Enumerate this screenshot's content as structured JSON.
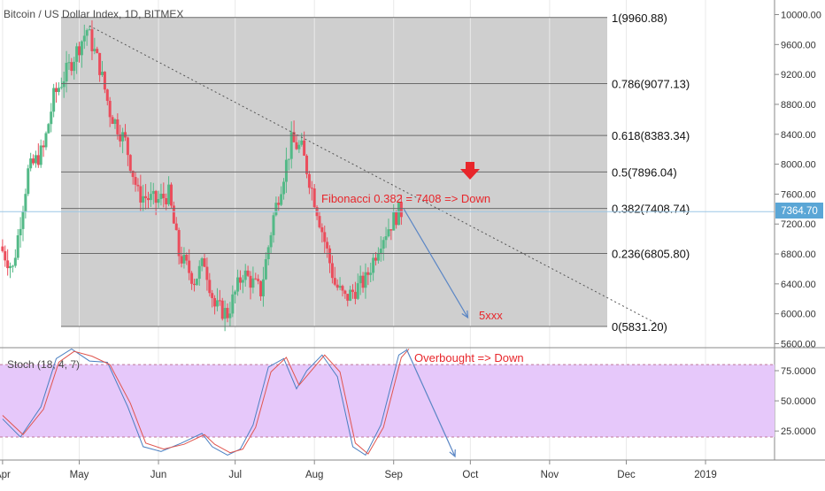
{
  "header": {
    "symbol_title": "Bitcoin / US Dollar Index, 1D, BITMEX"
  },
  "colors": {
    "up": "#53b987",
    "down": "#eb4d5c",
    "fib_zone": "#cfcfcf",
    "stoch_band": "#e6c8fa",
    "stoch_k": "#4a7fc1",
    "stoch_d": "#e0554e",
    "annotation_red": "#e8262b",
    "arrow_blue": "#5b86c5",
    "price_tag": "#5aa6d6"
  },
  "price_axis": {
    "ticks": [
      "10000.00",
      "9600.00",
      "9200.00",
      "8800.00",
      "8400.00",
      "8000.00",
      "7600.00",
      "7200.00",
      "6800.00",
      "6400.00",
      "6000.00",
      "5600.00"
    ]
  },
  "last_price_tag": "7364.70",
  "stoch_axis": {
    "ticks": [
      "75.0000",
      "50.0000",
      "25.0000"
    ]
  },
  "time_axis": {
    "labels": [
      "Apr",
      "May",
      "Jun",
      "Jul",
      "Aug",
      "Sep",
      "Oct",
      "Nov",
      "Dec",
      "2019"
    ]
  },
  "fib_levels": [
    {
      "label": "1(9960.88)",
      "price": 9960.88
    },
    {
      "label": "0.786(9077.13)",
      "price": 9077.13
    },
    {
      "label": "0.618(8383.34)",
      "price": 8383.34
    },
    {
      "label": "0.5(7896.04)",
      "price": 7896.04
    },
    {
      "label": "0.382(7408.74)",
      "price": 7408.74
    },
    {
      "label": "0.236(6805.80)",
      "price": 6805.8
    },
    {
      "label": "0(5831.20)",
      "price": 5831.2
    }
  ],
  "annotations": {
    "fib_note": "Fibonacci 0.382 = 7408 => Down",
    "target_note": "5xxx",
    "stoch_note": "Overbought => Down",
    "stoch_label": "Stoch (18, 4, 7)"
  },
  "chart_data": {
    "type": "candlestick",
    "title": "Bitcoin / US Dollar Index, 1D, BITMEX",
    "ylim": [
      5550,
      10050
    ],
    "x_range": [
      "2018-03-31",
      "2019-01-28"
    ],
    "key_prices": [
      {
        "date": "2018-04-01",
        "price": 6900
      },
      {
        "date": "2018-04-06",
        "price": 6600
      },
      {
        "date": "2018-04-12",
        "price": 7900
      },
      {
        "date": "2018-04-18",
        "price": 8200
      },
      {
        "date": "2018-04-22",
        "price": 8900
      },
      {
        "date": "2018-04-28",
        "price": 9300
      },
      {
        "date": "2018-05-05",
        "price": 9800
      },
      {
        "date": "2018-05-10",
        "price": 9300
      },
      {
        "date": "2018-05-14",
        "price": 8700
      },
      {
        "date": "2018-05-20",
        "price": 8300
      },
      {
        "date": "2018-05-25",
        "price": 7600
      },
      {
        "date": "2018-06-01",
        "price": 7500
      },
      {
        "date": "2018-06-06",
        "price": 7600
      },
      {
        "date": "2018-06-10",
        "price": 6800
      },
      {
        "date": "2018-06-16",
        "price": 6450
      },
      {
        "date": "2018-06-20",
        "price": 6700
      },
      {
        "date": "2018-06-24",
        "price": 6100
      },
      {
        "date": "2018-06-29",
        "price": 6000
      },
      {
        "date": "2018-07-05",
        "price": 6550
      },
      {
        "date": "2018-07-12",
        "price": 6300
      },
      {
        "date": "2018-07-17",
        "price": 7300
      },
      {
        "date": "2018-07-24",
        "price": 8300
      },
      {
        "date": "2018-07-28",
        "price": 8200
      },
      {
        "date": "2018-08-03",
        "price": 7400
      },
      {
        "date": "2018-08-10",
        "price": 6400
      },
      {
        "date": "2018-08-14",
        "price": 6200
      },
      {
        "date": "2018-08-22",
        "price": 6450
      },
      {
        "date": "2018-08-28",
        "price": 7000
      },
      {
        "date": "2018-09-04",
        "price": 7365
      }
    ],
    "projection_arrow": {
      "from": [
        "2018-09-05",
        7400
      ],
      "to": [
        "2018-09-30",
        5950
      ]
    },
    "trendline": {
      "from": [
        "2018-05-05",
        9850
      ],
      "to": [
        "2018-12-15",
        5830
      ]
    },
    "stoch": {
      "name": "Stoch (18, 4, 7)",
      "ylim": [
        0,
        100
      ],
      "upper_band": 80,
      "lower_band": 20,
      "k_points": [
        [
          "2018-04-01",
          35
        ],
        [
          "2018-04-08",
          20
        ],
        [
          "2018-04-16",
          45
        ],
        [
          "2018-04-22",
          85
        ],
        [
          "2018-04-28",
          93
        ],
        [
          "2018-05-05",
          83
        ],
        [
          "2018-05-12",
          82
        ],
        [
          "2018-05-20",
          45
        ],
        [
          "2018-05-26",
          12
        ],
        [
          "2018-06-02",
          8
        ],
        [
          "2018-06-10",
          15
        ],
        [
          "2018-06-18",
          23
        ],
        [
          "2018-06-22",
          12
        ],
        [
          "2018-06-28",
          5
        ],
        [
          "2018-07-03",
          10
        ],
        [
          "2018-07-08",
          30
        ],
        [
          "2018-07-14",
          78
        ],
        [
          "2018-07-20",
          85
        ],
        [
          "2018-07-25",
          60
        ],
        [
          "2018-07-29",
          75
        ],
        [
          "2018-08-04",
          88
        ],
        [
          "2018-08-10",
          70
        ],
        [
          "2018-08-16",
          12
        ],
        [
          "2018-08-21",
          5
        ],
        [
          "2018-08-27",
          30
        ],
        [
          "2018-09-03",
          88
        ],
        [
          "2018-09-06",
          92
        ]
      ],
      "d_points": [
        [
          "2018-04-01",
          38
        ],
        [
          "2018-04-09",
          22
        ],
        [
          "2018-04-17",
          43
        ],
        [
          "2018-04-23",
          82
        ],
        [
          "2018-04-29",
          91
        ],
        [
          "2018-05-06",
          87
        ],
        [
          "2018-05-13",
          80
        ],
        [
          "2018-05-21",
          48
        ],
        [
          "2018-05-27",
          15
        ],
        [
          "2018-06-03",
          10
        ],
        [
          "2018-06-11",
          14
        ],
        [
          "2018-06-19",
          22
        ],
        [
          "2018-06-23",
          14
        ],
        [
          "2018-06-29",
          7
        ],
        [
          "2018-07-04",
          10
        ],
        [
          "2018-07-09",
          28
        ],
        [
          "2018-07-15",
          74
        ],
        [
          "2018-07-21",
          86
        ],
        [
          "2018-07-26",
          63
        ],
        [
          "2018-07-30",
          73
        ],
        [
          "2018-08-05",
          88
        ],
        [
          "2018-08-11",
          74
        ],
        [
          "2018-08-17",
          15
        ],
        [
          "2018-08-22",
          6
        ],
        [
          "2018-08-28",
          28
        ],
        [
          "2018-09-04",
          86
        ],
        [
          "2018-09-07",
          93
        ]
      ],
      "projection_arrow": {
        "from": [
          "2018-09-06",
          93
        ],
        "to": [
          "2018-09-25",
          0
        ]
      }
    }
  }
}
